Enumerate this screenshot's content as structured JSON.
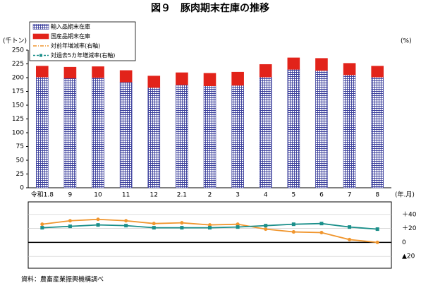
{
  "chart_data": {
    "type": "bar",
    "title": "図９　豚肉期末在庫の推移",
    "y_label": "(千トン)",
    "y2_label": "(%)",
    "x_label": "(年.月)",
    "source": "資料：農畜産業振興機構調べ",
    "categories": [
      "令和1.8",
      "9",
      "10",
      "11",
      "12",
      "2.1",
      "2",
      "3",
      "4",
      "5",
      "6",
      "7",
      "8"
    ],
    "stacked": true,
    "series": [
      {
        "name": "輸入品期末在庫",
        "type": "bar",
        "color": "#3b3f9c",
        "pattern": "grid",
        "values": [
          201,
          199,
          200,
          192,
          182,
          187,
          185,
          186,
          201,
          215,
          213,
          205,
          201
        ]
      },
      {
        "name": "国産品期末在庫",
        "type": "bar",
        "color": "#e2231a",
        "values": [
          20,
          20,
          20,
          21,
          21,
          22,
          23,
          24,
          23,
          21,
          22,
          21,
          20
        ]
      },
      {
        "name": "対前年増減率(右軸)",
        "type": "line",
        "axis": "y2",
        "color": "#f0962e",
        "values": [
          26,
          31,
          33,
          31,
          27,
          28,
          25,
          26,
          19,
          15,
          14,
          4,
          0
        ]
      },
      {
        "name": "対過去5カ年増減率(右軸)",
        "type": "line",
        "axis": "y2",
        "color": "#1b8f8a",
        "values": [
          21,
          23,
          25,
          24,
          21,
          21,
          21,
          22,
          24,
          26,
          27,
          22,
          19
        ]
      }
    ],
    "ylim": [
      0,
      250
    ],
    "yticks": [
      0,
      25,
      50,
      75,
      100,
      125,
      150,
      175,
      200,
      225,
      250
    ],
    "y2lim": [
      -37,
      58
    ],
    "y2ticks": [
      {
        "value": 40,
        "label": "＋40"
      },
      {
        "value": 20,
        "label": "＋20"
      },
      0,
      {
        "value": -20,
        "label": "▲20"
      }
    ],
    "grid": true
  }
}
